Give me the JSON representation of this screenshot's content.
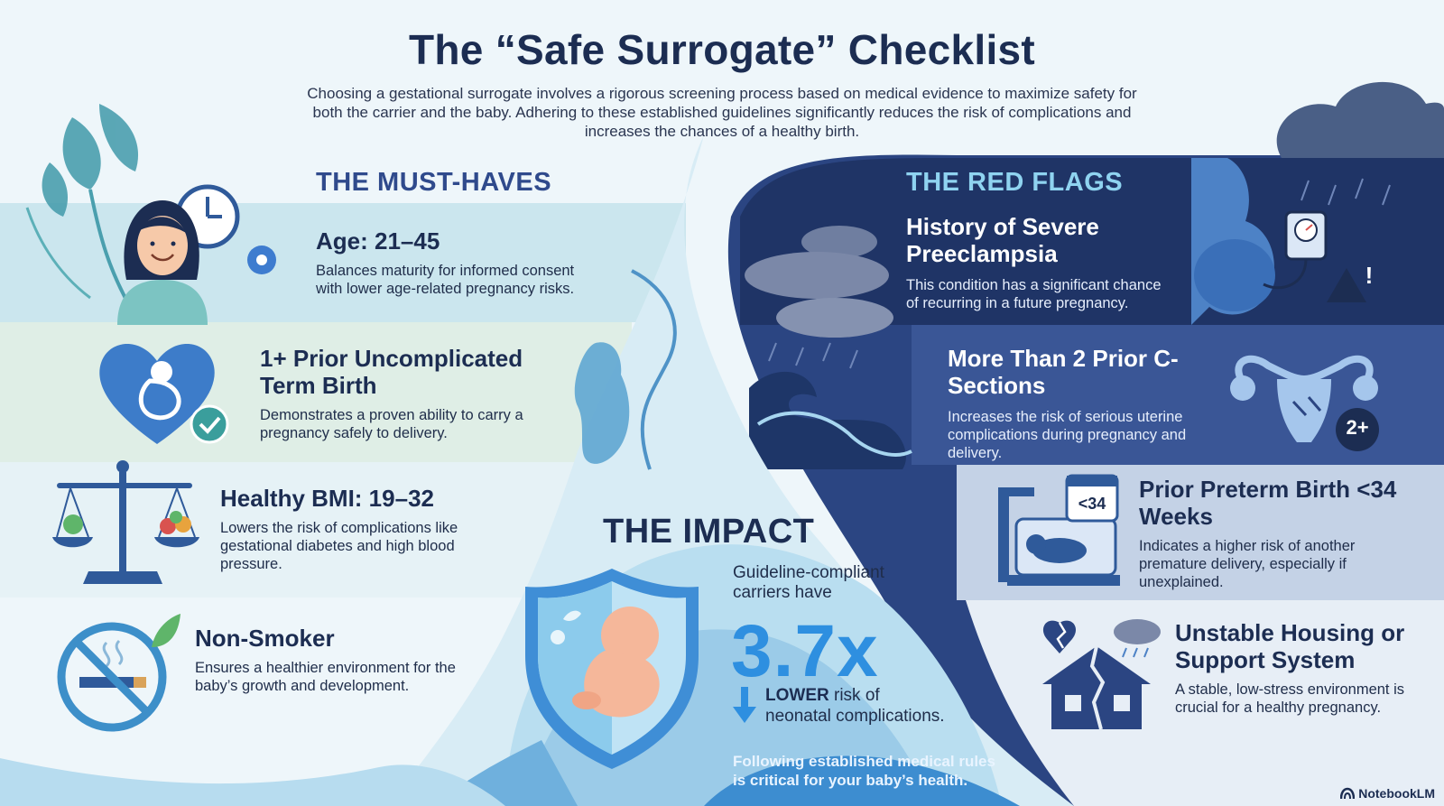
{
  "title": "The “Safe Surrogate” Checklist",
  "intro": "Choosing a gestational surrogate involves a rigorous screening process based on medical evidence to maximize safety for both the carrier and the baby. Adhering to these established guidelines significantly reduces the risk of complications and increases the chances of a healthy birth.",
  "must_haves": {
    "heading": "THE MUST-HAVES",
    "items": [
      {
        "title": "Age: 21–45",
        "desc": "Balances maturity for informed consent with lower age-related pregnancy risks.",
        "icon": "woman-clock-icon"
      },
      {
        "title": "1+ Prior Uncomplicated Term Birth",
        "desc": "Demonstrates a proven ability to carry a pregnancy safely to delivery.",
        "icon": "heart-baby-check-icon"
      },
      {
        "title": "Healthy BMI: 19–32",
        "desc": "Lowers the risk of complications like gestational diabetes and high blood pressure.",
        "icon": "balance-scale-icon"
      },
      {
        "title": "Non-Smoker",
        "desc": "Ensures a healthier environment for the baby’s growth and development.",
        "icon": "no-smoking-icon"
      }
    ]
  },
  "red_flags": {
    "heading": "THE RED FLAGS",
    "items": [
      {
        "title": "History of Severe Preeclampsia",
        "desc": "This condition has a significant chance of recurring in a future pregnancy.",
        "icon": "pregnant-bp-monitor-icon",
        "badge": "!"
      },
      {
        "title": "More Than 2 Prior C-Sections",
        "desc": "Increases the risk of serious uterine complications during pregnancy and delivery.",
        "icon": "uterus-icon",
        "badge": "2+"
      },
      {
        "title": "Prior Preterm Birth <34 Weeks",
        "desc": "Indicates a higher risk of another premature delivery, especially if unexplained.",
        "icon": "incubator-icon",
        "badge": "<34"
      },
      {
        "title": "Unstable Housing or Support System",
        "desc": "A stable, low-stress environment is crucial for a healthy pregnancy.",
        "icon": "broken-house-icon"
      }
    ]
  },
  "impact": {
    "heading": "THE IMPACT",
    "lead": "Guideline-compliant carriers have",
    "value": "3.7x",
    "emphasis": "LOWER",
    "line1_rest": " risk of",
    "line2": "neonatal complications.",
    "footer": "Following established medical rules is critical for your baby’s health.",
    "icon": "shield-baby-icon"
  },
  "brand": "NotebookLM",
  "colors": {
    "navy": "#1c2d52",
    "dark_blue": "#2c4682",
    "accent_blue": "#2e8fe0",
    "light_band": "#cfe8ef",
    "pale_band": "#e3f0ec"
  }
}
